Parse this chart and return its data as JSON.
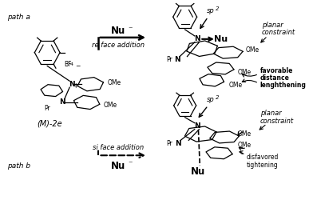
{
  "background_color": "#ffffff",
  "fig_width": 3.92,
  "fig_height": 2.5,
  "dpi": 100,
  "path_a_label": "path a",
  "path_b_label": "path b",
  "nu_arrow_top": "Nu",
  "nu_minus_top": "⁻",
  "nu_arrow_bot": "Nu",
  "nu_minus_bot": "⁻",
  "re_face_text": "re face addition",
  "si_face_text": "si face addition",
  "label_M2e": "(M)-2e",
  "sp2_top": "sp",
  "sp2_sup_top": "2",
  "sp2_bot": "sp",
  "sp2_sup_bot": "2",
  "planar_top_1": "planar",
  "planar_top_2": "constraint",
  "planar_bot_1": "planar",
  "planar_bot_2": "constraint",
  "favorable_1": "favorable",
  "favorable_2": "distance",
  "favorable_3": "lenghthening",
  "disfavored_1": "disfavored",
  "disfavored_2": "tightening",
  "nu_prod_top": "Nu",
  "nu_prod_bot": "Nu",
  "OMe_tr1": "OMe",
  "OMe_tr2": "OMe",
  "OMe_tr3": "OMe",
  "OMe_br1": "OMe",
  "OMe_br2": "OMe",
  "BF4": "BF",
  "BF4_sub": "4",
  "BF4_sup": "−",
  "Pr_left": "Pr",
  "Pr_tr": "Pr",
  "Pr_br": "Pr",
  "plus": "+",
  "text_color": "#000000"
}
